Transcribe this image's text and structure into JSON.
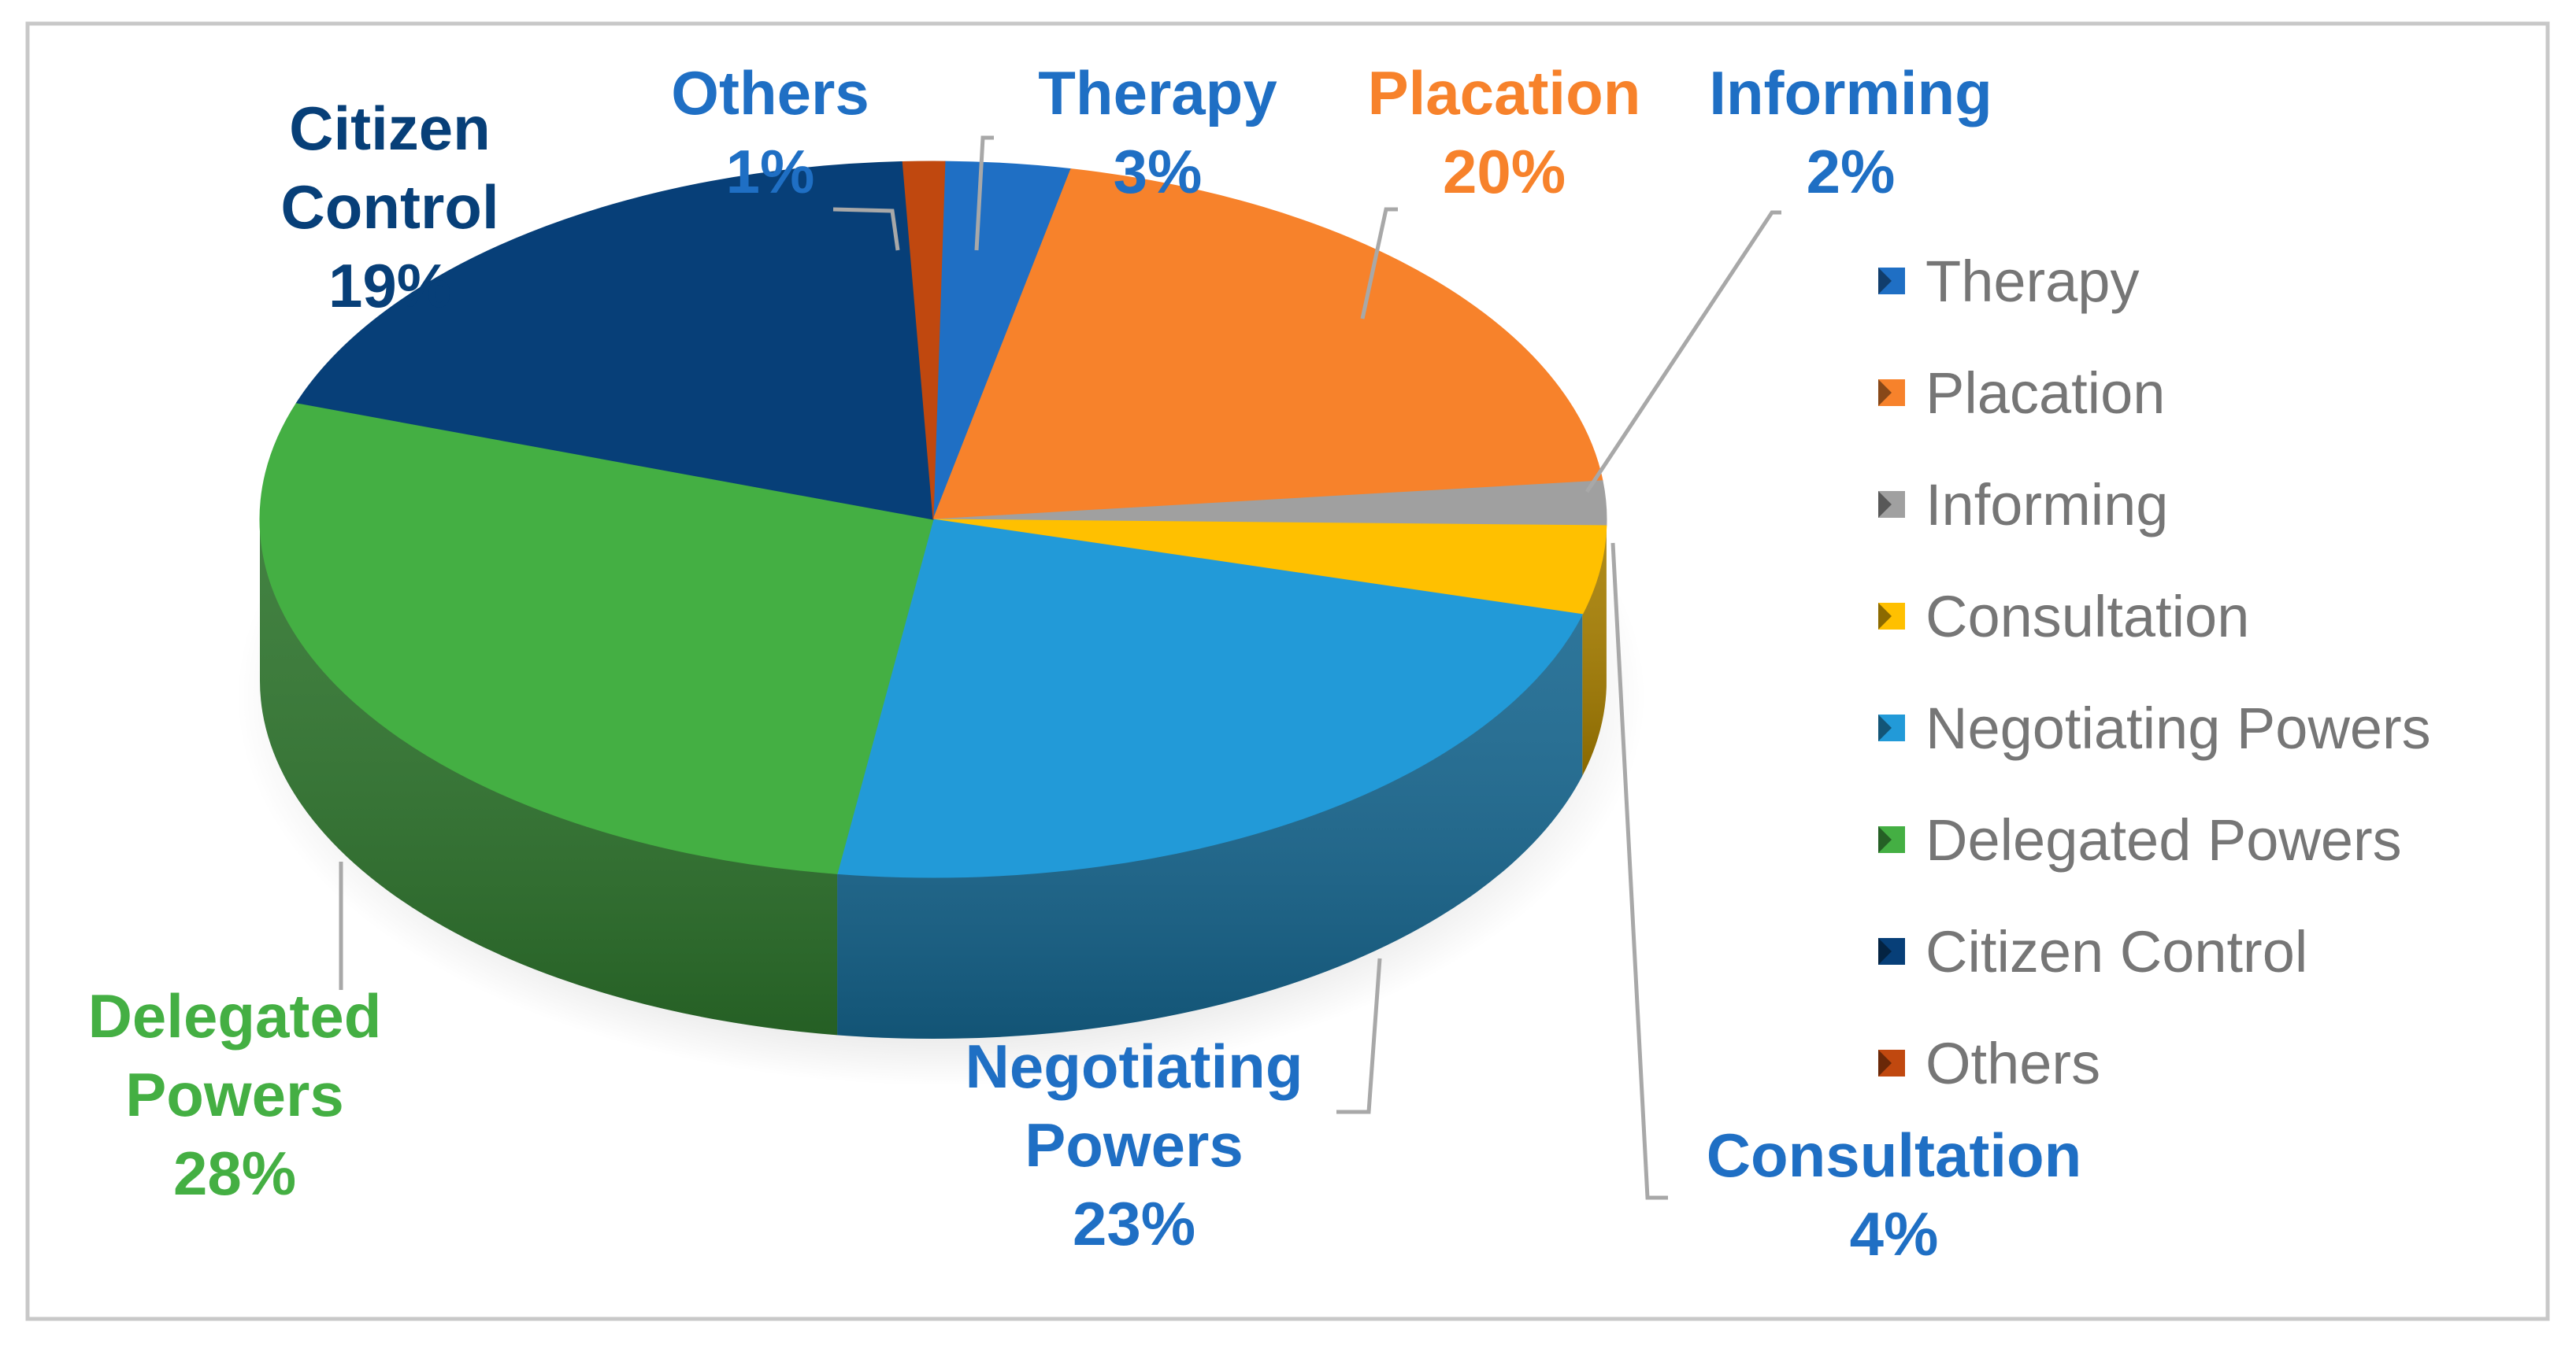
{
  "chart_data": {
    "type": "pie",
    "style": "3d",
    "title": "",
    "legend_position": "right",
    "slices": [
      {
        "name": "Therapy",
        "value": 3,
        "label": "3%",
        "color": "#1f6fc4",
        "label_color": "#1f6fc4"
      },
      {
        "name": "Placation",
        "value": 20,
        "label": "20%",
        "color": "#f7822b",
        "label_color": "#f7822b"
      },
      {
        "name": "Informing",
        "value": 2,
        "label": "2%",
        "color": "#a0a0a0",
        "label_color": "#1f6fc4"
      },
      {
        "name": "Consultation",
        "value": 4,
        "label": "4%",
        "color": "#ffc000",
        "label_color": "#1f6fc4"
      },
      {
        "name": "Negotiating Powers",
        "value": 23,
        "label": "23%",
        "color": "#229ad8",
        "label_color": "#1f6fc4"
      },
      {
        "name": "Delegated Powers",
        "value": 28,
        "label": "28%",
        "color": "#44af43",
        "label_color": "#44af43"
      },
      {
        "name": "Citizen Control",
        "value": 19,
        "label": "19%",
        "color": "#073f78",
        "label_color": "#073f78"
      },
      {
        "name": "Others",
        "value": 1,
        "label": "1%",
        "color": "#c0480f",
        "label_color": "#1f6fc4"
      }
    ],
    "legend_text_color": "#767676",
    "leader_color": "#a8a8a8",
    "border_color": "#c8c8c8"
  }
}
